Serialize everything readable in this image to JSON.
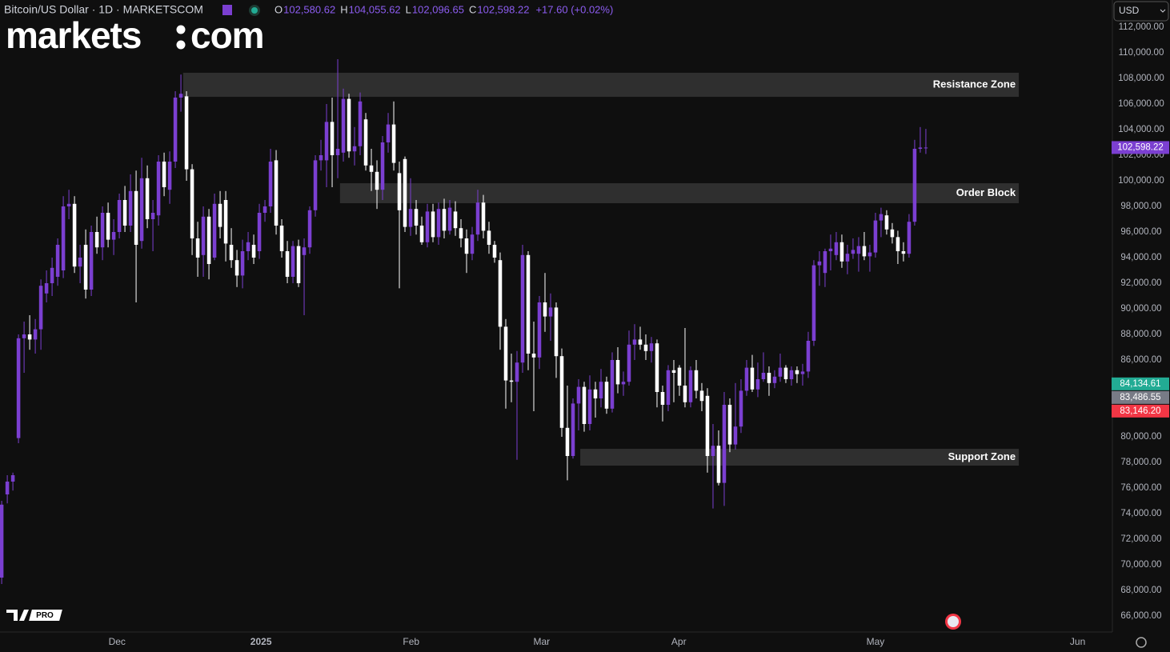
{
  "header": {
    "symbol": "Bitcoin/US Dollar · 1D · MARKETSCOM",
    "ohlc": [
      {
        "label": "O",
        "value": "102,580.62"
      },
      {
        "label": "H",
        "value": "104,055.62"
      },
      {
        "label": "L",
        "value": "102,096.65"
      },
      {
        "label": "C",
        "value": "102,598.22"
      }
    ],
    "change": "+17.60 (+0.02%)"
  },
  "logo": {
    "left": "markets",
    "right": "com"
  },
  "ui": {
    "currency": "USD",
    "badge": "PRO"
  },
  "chart_data": {
    "type": "candlestick",
    "up_color": "#7b3fd1",
    "down_color": "#ffffff",
    "xlim": [
      -0.3,
      198.3
    ],
    "ylim": [
      64750,
      114125
    ],
    "xticks": [
      {
        "value": 20.6,
        "label": "Dec"
      },
      {
        "value": 46.3,
        "label": "2025"
      },
      {
        "value": 73.1,
        "label": "Feb"
      },
      {
        "value": 96.4,
        "label": "Mar"
      },
      {
        "value": 120.9,
        "label": "Apr"
      },
      {
        "value": 156,
        "label": "May"
      },
      {
        "value": 192.1,
        "label": "Jun"
      }
    ],
    "yticks": [
      {
        "value": 66000,
        "label": "66,000.00"
      },
      {
        "value": 68000,
        "label": "68,000.00"
      },
      {
        "value": 70000,
        "label": "70,000.00"
      },
      {
        "value": 72000,
        "label": "72,000.00"
      },
      {
        "value": 74000,
        "label": "74,000.00"
      },
      {
        "value": 76000,
        "label": "76,000.00"
      },
      {
        "value": 78000,
        "label": "78,000.00"
      },
      {
        "value": 80000,
        "label": "80,000.00"
      },
      {
        "value": 86000,
        "label": "86,000.00"
      },
      {
        "value": 88000,
        "label": "88,000.00"
      },
      {
        "value": 90000,
        "label": "90,000.00"
      },
      {
        "value": 92000,
        "label": "92,000.00"
      },
      {
        "value": 94000,
        "label": "94,000.00"
      },
      {
        "value": 96000,
        "label": "96,000.00"
      },
      {
        "value": 98000,
        "label": "98,000.00"
      },
      {
        "value": 100000,
        "label": "100,000.00"
      },
      {
        "value": 102000,
        "label": "102,000.00"
      },
      {
        "value": 104000,
        "label": "104,000.00"
      },
      {
        "value": 106000,
        "label": "106,000.00"
      },
      {
        "value": 108000,
        "label": "108,000.00"
      },
      {
        "value": 110000,
        "label": "110,000.00"
      },
      {
        "value": 112000,
        "label": "112,000.00"
      }
    ],
    "zones": [
      {
        "label": "Resistance Zone",
        "low": 106560,
        "high": 108440,
        "x0": 32.4,
        "x1": 181.6
      },
      {
        "label": "Order Block",
        "low": 98250,
        "high": 99810,
        "x0": 60.4,
        "x1": 181.6
      },
      {
        "label": "Support Zone",
        "low": 77750,
        "high": 79060,
        "x0": 103.3,
        "x1": 181.6
      }
    ],
    "price_tags": [
      {
        "value": 102598.22,
        "label": "102,598.22",
        "color": "#7b3fd1"
      },
      {
        "value": 84134.61,
        "label": "84,134.61",
        "color": "#22ab94"
      },
      {
        "value": 83486.55,
        "label": "83,486.55",
        "color": "#787b86"
      },
      {
        "value": 83146.2,
        "label": "83,146.20",
        "color": "#f23645"
      }
    ],
    "ohlc": [
      [
        69000,
        75000,
        68500,
        74700
      ],
      [
        75500,
        77000,
        74800,
        76500
      ],
      [
        76500,
        77200,
        75800,
        77000
      ],
      [
        79900,
        88000,
        79500,
        87700
      ],
      [
        87700,
        89000,
        85000,
        88000
      ],
      [
        88000,
        89500,
        86800,
        87600
      ],
      [
        87600,
        89200,
        86500,
        88400
      ],
      [
        88400,
        92300,
        86800,
        91800
      ],
      [
        91200,
        93000,
        90500,
        92000
      ],
      [
        92000,
        94000,
        91000,
        93200
      ],
      [
        92500,
        95500,
        91800,
        95000
      ],
      [
        93000,
        98800,
        92400,
        98000
      ],
      [
        98000,
        99300,
        97000,
        98200
      ],
      [
        98200,
        98800,
        92800,
        93300
      ],
      [
        93300,
        95000,
        92000,
        94000
      ],
      [
        95000,
        96200,
        90800,
        91500
      ],
      [
        91500,
        96500,
        91000,
        96000
      ],
      [
        96000,
        97200,
        94300,
        94800
      ],
      [
        94800,
        98000,
        93800,
        97500
      ],
      [
        97500,
        98300,
        94800,
        95400
      ],
      [
        95400,
        97000,
        94200,
        96000
      ],
      [
        96000,
        99000,
        95500,
        98500
      ],
      [
        98500,
        99600,
        96000,
        96500
      ],
      [
        96500,
        100500,
        96000,
        99200
      ],
      [
        99200,
        100800,
        90500,
        95000
      ],
      [
        95300,
        101800,
        94700,
        100200
      ],
      [
        100200,
        101200,
        96300,
        97000
      ],
      [
        97000,
        98500,
        94500,
        97500
      ],
      [
        97300,
        102000,
        96500,
        101500
      ],
      [
        101500,
        102200,
        98800,
        99500
      ],
      [
        99300,
        102300,
        98200,
        101500
      ],
      [
        101500,
        107000,
        101000,
        106500
      ],
      [
        106500,
        108300,
        105400,
        106800
      ],
      [
        106600,
        107000,
        100000,
        100900
      ],
      [
        100900,
        101300,
        94200,
        95500
      ],
      [
        95500,
        96800,
        92500,
        94000
      ],
      [
        94200,
        98000,
        92500,
        97200
      ],
      [
        97200,
        97800,
        92300,
        93500
      ],
      [
        94000,
        99000,
        93800,
        98200
      ],
      [
        98200,
        99200,
        95500,
        96400
      ],
      [
        98500,
        99200,
        93700,
        95100
      ],
      [
        95000,
        96300,
        93200,
        93800
      ],
      [
        93800,
        94600,
        91700,
        92600
      ],
      [
        92600,
        95400,
        91600,
        94500
      ],
      [
        94500,
        96000,
        93800,
        95200
      ],
      [
        95000,
        95800,
        93500,
        94000
      ],
      [
        94500,
        98200,
        93900,
        97500
      ],
      [
        97500,
        98500,
        96800,
        98000
      ],
      [
        98000,
        102500,
        97500,
        101500
      ],
      [
        101600,
        102400,
        95800,
        96500
      ],
      [
        96500,
        97000,
        94000,
        94500
      ],
      [
        94500,
        95300,
        92000,
        92500
      ],
      [
        92500,
        95300,
        92000,
        94900
      ],
      [
        94900,
        95400,
        91700,
        92000
      ],
      [
        94200,
        95500,
        89500,
        94800
      ],
      [
        94800,
        98000,
        94300,
        97700
      ],
      [
        97700,
        102000,
        97200,
        101600
      ],
      [
        101600,
        103200,
        100800,
        102000
      ],
      [
        101600,
        106000,
        99500,
        104600
      ],
      [
        104600,
        106500,
        99500,
        102000
      ],
      [
        102000,
        109500,
        100200,
        102500
      ],
      [
        102200,
        107200,
        101500,
        106400
      ],
      [
        106400,
        106800,
        101800,
        102300
      ],
      [
        102300,
        104200,
        101200,
        102700
      ],
      [
        102700,
        106900,
        102000,
        106200
      ],
      [
        104800,
        105300,
        100800,
        101200
      ],
      [
        101200,
        102500,
        99200,
        100700
      ],
      [
        100700,
        101600,
        97800,
        99300
      ],
      [
        99300,
        103500,
        98500,
        103000
      ],
      [
        103000,
        105300,
        102200,
        104400
      ],
      [
        104400,
        106200,
        100800,
        101400
      ],
      [
        100600,
        101500,
        91600,
        97700
      ],
      [
        101700,
        101900,
        96000,
        96400
      ],
      [
        96400,
        100200,
        95700,
        97800
      ],
      [
        97800,
        98500,
        95800,
        96500
      ],
      [
        96500,
        97200,
        95000,
        95200
      ],
      [
        95200,
        98200,
        94800,
        97600
      ],
      [
        97600,
        98200,
        95200,
        95600
      ],
      [
        95600,
        98300,
        95000,
        97800
      ],
      [
        97800,
        98600,
        95500,
        96100
      ],
      [
        96100,
        98500,
        95800,
        97900
      ],
      [
        97600,
        98400,
        95700,
        96300
      ],
      [
        96300,
        97000,
        94800,
        95500
      ],
      [
        95500,
        96200,
        92800,
        94300
      ],
      [
        94300,
        96400,
        93800,
        95800
      ],
      [
        95800,
        99300,
        95300,
        98300
      ],
      [
        98300,
        98900,
        95500,
        96100
      ],
      [
        96100,
        96800,
        94300,
        95000
      ],
      [
        95000,
        95300,
        93600,
        94000
      ],
      [
        93800,
        94400,
        86800,
        88600
      ],
      [
        88600,
        89200,
        82200,
        84400
      ],
      [
        84400,
        86500,
        82700,
        84300
      ],
      [
        84300,
        86700,
        78200,
        85800
      ],
      [
        85800,
        95000,
        85000,
        94200
      ],
      [
        94200,
        94500,
        85200,
        86500
      ],
      [
        86500,
        89000,
        82000,
        86200
      ],
      [
        86200,
        91000,
        85300,
        90500
      ],
      [
        90500,
        92800,
        88200,
        89400
      ],
      [
        89400,
        91200,
        87500,
        90100
      ],
      [
        90100,
        90500,
        84600,
        86300
      ],
      [
        86300,
        86900,
        80000,
        80700
      ],
      [
        80700,
        84000,
        76600,
        78500
      ],
      [
        78500,
        83000,
        78300,
        82600
      ],
      [
        82600,
        84500,
        80500,
        83900
      ],
      [
        83900,
        84300,
        80400,
        81000
      ],
      [
        81000,
        84800,
        80500,
        83700
      ],
      [
        83700,
        84300,
        81500,
        83000
      ],
      [
        83000,
        85300,
        82300,
        84300
      ],
      [
        84300,
        84700,
        81800,
        82200
      ],
      [
        82200,
        86600,
        81900,
        86000
      ],
      [
        86000,
        87000,
        83400,
        84100
      ],
      [
        84100,
        85100,
        83200,
        84300
      ],
      [
        84300,
        88300,
        84000,
        87200
      ],
      [
        87200,
        88800,
        86000,
        87600
      ],
      [
        87600,
        88600,
        86800,
        87200
      ],
      [
        87200,
        88000,
        86000,
        86700
      ],
      [
        86700,
        87800,
        85800,
        87300
      ],
      [
        87300,
        87600,
        82300,
        83500
      ],
      [
        83500,
        84000,
        81200,
        82500
      ],
      [
        82500,
        85600,
        82000,
        85200
      ],
      [
        85200,
        86000,
        82700,
        85000
      ],
      [
        85400,
        85600,
        83200,
        84000
      ],
      [
        84000,
        88500,
        82300,
        82700
      ],
      [
        82700,
        85500,
        82300,
        85200
      ],
      [
        85200,
        86000,
        83000,
        83600
      ],
      [
        83600,
        84200,
        82000,
        82800
      ],
      [
        83200,
        83800,
        77200,
        78500
      ],
      [
        78500,
        81000,
        74400,
        79300
      ],
      [
        79300,
        80500,
        76200,
        76400
      ],
      [
        76400,
        83500,
        74600,
        82500
      ],
      [
        82500,
        83000,
        78800,
        79400
      ],
      [
        79400,
        84200,
        79000,
        80800
      ],
      [
        80800,
        84500,
        80300,
        83600
      ],
      [
        83600,
        86000,
        83200,
        85400
      ],
      [
        85400,
        86400,
        83500,
        83700
      ],
      [
        83700,
        85800,
        83100,
        84500
      ],
      [
        84500,
        86600,
        84300,
        85000
      ],
      [
        85000,
        85500,
        83200,
        84200
      ],
      [
        84200,
        85200,
        83800,
        84700
      ],
      [
        84700,
        86500,
        84300,
        85400
      ],
      [
        85400,
        85600,
        84200,
        84500
      ],
      [
        84500,
        85500,
        84000,
        85200
      ],
      [
        85200,
        85500,
        84200,
        84900
      ],
      [
        84900,
        85700,
        84000,
        85100
      ],
      [
        85100,
        88200,
        84600,
        87500
      ],
      [
        87500,
        93800,
        87100,
        93400
      ],
      [
        93400,
        94500,
        91800,
        93700
      ],
      [
        92800,
        94700,
        91700,
        94500
      ],
      [
        94500,
        95800,
        93000,
        94700
      ],
      [
        94200,
        96000,
        93800,
        95200
      ],
      [
        95200,
        95800,
        93200,
        93700
      ],
      [
        93700,
        95000,
        92700,
        94300
      ],
      [
        94300,
        95500,
        93900,
        94600
      ],
      [
        94300,
        95600,
        92900,
        94900
      ],
      [
        94900,
        96000,
        93800,
        94100
      ],
      [
        94100,
        95000,
        92900,
        94400
      ],
      [
        94400,
        97500,
        94000,
        96900
      ],
      [
        96900,
        97900,
        95600,
        97400
      ],
      [
        97300,
        97700,
        95800,
        96200
      ],
      [
        96200,
        96700,
        95100,
        95600
      ],
      [
        95600,
        96100,
        93500,
        94500
      ],
      [
        94500,
        95200,
        93700,
        94300
      ],
      [
        94300,
        97400,
        94000,
        96800
      ],
      [
        96800,
        103200,
        96500,
        102500
      ],
      [
        102500,
        104200,
        102200,
        102600
      ],
      [
        102580.62,
        104055.62,
        102096.65,
        102598.22
      ]
    ]
  }
}
